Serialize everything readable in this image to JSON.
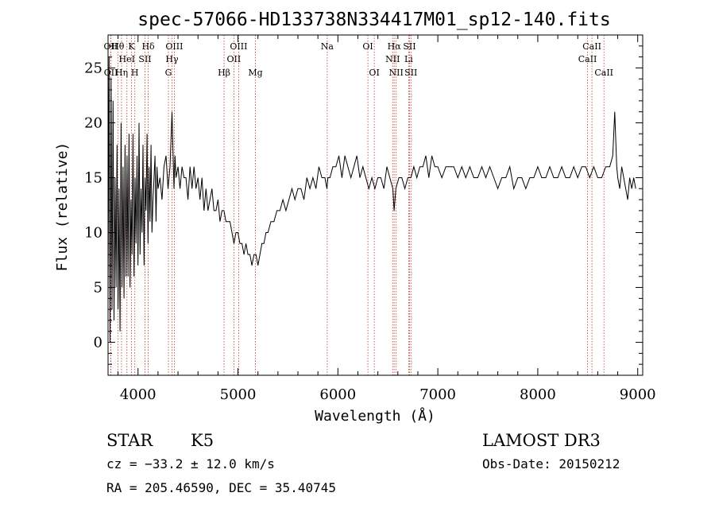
{
  "chart_data": {
    "type": "line",
    "title": "spec-57066-HD133738N334417M01_sp12-140.fits",
    "xlabel": "Wavelength (Å)",
    "ylabel": "Flux (relative)",
    "xlim": [
      3700,
      9050
    ],
    "ylim": [
      -3,
      28
    ],
    "xticks": [
      4000,
      5000,
      6000,
      7000,
      8000,
      9000
    ],
    "yticks": [
      0,
      5,
      10,
      15,
      20,
      25
    ],
    "grid": false,
    "series": [
      {
        "color": "#000000",
        "x": [
          3700,
          3710,
          3720,
          3730,
          3740,
          3750,
          3760,
          3770,
          3780,
          3790,
          3800,
          3810,
          3820,
          3830,
          3840,
          3850,
          3860,
          3870,
          3880,
          3890,
          3900,
          3910,
          3920,
          3930,
          3940,
          3950,
          3960,
          3970,
          3980,
          3990,
          4000,
          4010,
          4020,
          4030,
          4040,
          4050,
          4060,
          4070,
          4080,
          4090,
          4100,
          4110,
          4120,
          4130,
          4140,
          4150,
          4160,
          4170,
          4180,
          4190,
          4200,
          4220,
          4240,
          4260,
          4280,
          4300,
          4320,
          4340,
          4360,
          4370,
          4380,
          4400,
          4420,
          4440,
          4460,
          4480,
          4500,
          4520,
          4540,
          4560,
          4580,
          4600,
          4620,
          4640,
          4660,
          4680,
          4700,
          4720,
          4740,
          4760,
          4780,
          4800,
          4820,
          4840,
          4860,
          4880,
          4900,
          4920,
          4940,
          4960,
          4980,
          5000,
          5020,
          5040,
          5060,
          5080,
          5100,
          5120,
          5140,
          5160,
          5180,
          5200,
          5220,
          5240,
          5260,
          5280,
          5300,
          5330,
          5360,
          5390,
          5420,
          5450,
          5480,
          5510,
          5540,
          5570,
          5600,
          5630,
          5660,
          5690,
          5720,
          5750,
          5780,
          5810,
          5840,
          5870,
          5890,
          5900,
          5920,
          5950,
          5980,
          6010,
          6040,
          6070,
          6100,
          6130,
          6160,
          6190,
          6220,
          6250,
          6280,
          6310,
          6340,
          6370,
          6400,
          6430,
          6460,
          6490,
          6520,
          6550,
          6563,
          6580,
          6610,
          6640,
          6670,
          6700,
          6730,
          6760,
          6790,
          6820,
          6850,
          6880,
          6910,
          6940,
          6970,
          7000,
          7040,
          7080,
          7120,
          7160,
          7200,
          7240,
          7280,
          7320,
          7360,
          7400,
          7440,
          7480,
          7520,
          7560,
          7600,
          7640,
          7680,
          7720,
          7760,
          7800,
          7840,
          7880,
          7920,
          7960,
          8000,
          8040,
          8080,
          8120,
          8160,
          8200,
          8240,
          8280,
          8320,
          8360,
          8400,
          8440,
          8480,
          8520,
          8560,
          8600,
          8640,
          8680,
          8720,
          8750,
          8770,
          8790,
          8800,
          8820,
          8840,
          8860,
          8880,
          8900,
          8920,
          8940,
          8960,
          8980
        ],
        "values": [
          4,
          26,
          0,
          24,
          3,
          22,
          2,
          15,
          5,
          18,
          3,
          14,
          1,
          20,
          5,
          16,
          4,
          18,
          6,
          17,
          6,
          19,
          5,
          13,
          8,
          19,
          6,
          15,
          9,
          17,
          7,
          20,
          8,
          14,
          10,
          18,
          7,
          15,
          12,
          19,
          9,
          16,
          11,
          18,
          10,
          13,
          15,
          17,
          11,
          16,
          14,
          15,
          13,
          16,
          17,
          14,
          16,
          21,
          14,
          17,
          15,
          16,
          14,
          16,
          15,
          15,
          13,
          16,
          14,
          16,
          14,
          15,
          13,
          15,
          12,
          14,
          12,
          13,
          14,
          12,
          12,
          13,
          11,
          12,
          12,
          11,
          11,
          11,
          10,
          9,
          10,
          10,
          9,
          9,
          8,
          9,
          8,
          8,
          7,
          8,
          8,
          7,
          8,
          9,
          9,
          10,
          10,
          11,
          11,
          12,
          12,
          13,
          12,
          13,
          14,
          13,
          14,
          14,
          13,
          15,
          14,
          15,
          14,
          16,
          15,
          15,
          14,
          15,
          15,
          16,
          16,
          17,
          15,
          17,
          16,
          15,
          16,
          17,
          15,
          16,
          15,
          14,
          15,
          14,
          15,
          15,
          14,
          16,
          15,
          14,
          12,
          14,
          15,
          15,
          14,
          15,
          15,
          16,
          15,
          16,
          16,
          17,
          15,
          17,
          16,
          16,
          15,
          16,
          16,
          16,
          15,
          16,
          15,
          16,
          15,
          15,
          16,
          15,
          16,
          15,
          14,
          15,
          15,
          16,
          14,
          15,
          15,
          14,
          15,
          15,
          16,
          15,
          15,
          16,
          15,
          15,
          16,
          15,
          15,
          16,
          15,
          16,
          16,
          15,
          16,
          15,
          15,
          16,
          16,
          17,
          21,
          16,
          15,
          14,
          16,
          15,
          14,
          13,
          15,
          14,
          15,
          14
        ]
      }
    ],
    "lines": {
      "v1": [
        {
          "label": "OII",
          "x": 3727
        },
        {
          "label": "Hθ",
          "x": 3798
        },
        {
          "label": "K",
          "x": 3934
        },
        {
          "label": "Hδ",
          "x": 4102
        },
        {
          "label": "OIII",
          "x": 4363
        },
        {
          "label": "OIII",
          "x": 5007
        },
        {
          "label": "Na",
          "x": 5893
        },
        {
          "label": "OI",
          "x": 6300
        },
        {
          "label": "Hα",
          "x": 6563
        },
        {
          "label": "SII",
          "x": 6717
        },
        {
          "label": "CaII",
          "x": 8542
        }
      ],
      "v2": [
        {
          "label": "HeI",
          "x": 3889
        },
        {
          "label": "SII",
          "x": 4070
        },
        {
          "label": "Hγ",
          "x": 4340
        },
        {
          "label": "OII",
          "x": 4959
        },
        {
          "label": "NII",
          "x": 6548
        },
        {
          "label": "Li",
          "x": 6708
        },
        {
          "label": "CaII",
          "x": 8498
        }
      ],
      "v3": [
        {
          "label": "OII",
          "x": 3729
        },
        {
          "label": "Hη",
          "x": 3835
        },
        {
          "label": "H",
          "x": 3968
        },
        {
          "label": "G",
          "x": 4304
        },
        {
          "label": "Hβ",
          "x": 4861
        },
        {
          "label": "Mg",
          "x": 5175
        },
        {
          "label": "OI",
          "x": 6364
        },
        {
          "label": "NII",
          "x": 6583
        },
        {
          "label": "SII",
          "x": 6731
        },
        {
          "label": "CaII",
          "x": 8662
        }
      ]
    }
  },
  "info": {
    "object_class": "STAR",
    "subclass": "K5",
    "survey": "LAMOST DR3",
    "cz": "cz = −33.2 ± 12.0 km/s",
    "obs_date": "Obs-Date: 20150212",
    "radec": "RA = 205.46590, DEC =  35.40745"
  }
}
